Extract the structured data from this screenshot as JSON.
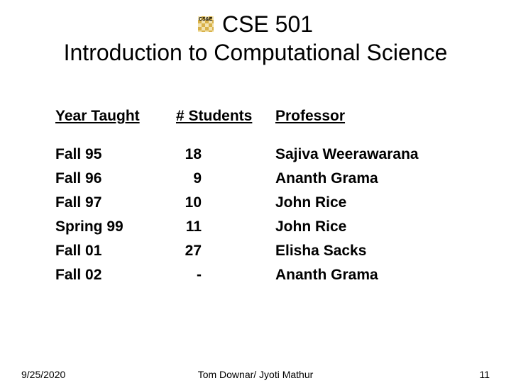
{
  "title": {
    "line1": "CSE 501",
    "line2": "Introduction to Computational Science",
    "logo_label": "CS&E"
  },
  "table": {
    "headers": {
      "year": "Year Taught",
      "students": "# Students",
      "professor": "Professor"
    },
    "rows": [
      {
        "year": "Fall 95",
        "students": "18",
        "professor": "Sajiva Weerawarana"
      },
      {
        "year": "Fall 96",
        "students": "9",
        "professor": "Ananth Grama"
      },
      {
        "year": "Fall 97",
        "students": "10",
        "professor": "John Rice"
      },
      {
        "year": "Spring 99",
        "students": "11",
        "professor": "John Rice"
      },
      {
        "year": "Fall 01",
        "students": "27",
        "professor": "Elisha Sacks"
      },
      {
        "year": "Fall 02",
        "students": "-",
        "professor": "Ananth Grama"
      }
    ]
  },
  "footer": {
    "date": "9/25/2020",
    "center": "Tom Downar/ Jyoti Mathur",
    "page": "11"
  },
  "style": {
    "background_color": "#ffffff",
    "text_color": "#000000",
    "title_fontsize": 32,
    "body_fontsize": 21,
    "footer_fontsize": 14,
    "font_family": "Arial"
  }
}
